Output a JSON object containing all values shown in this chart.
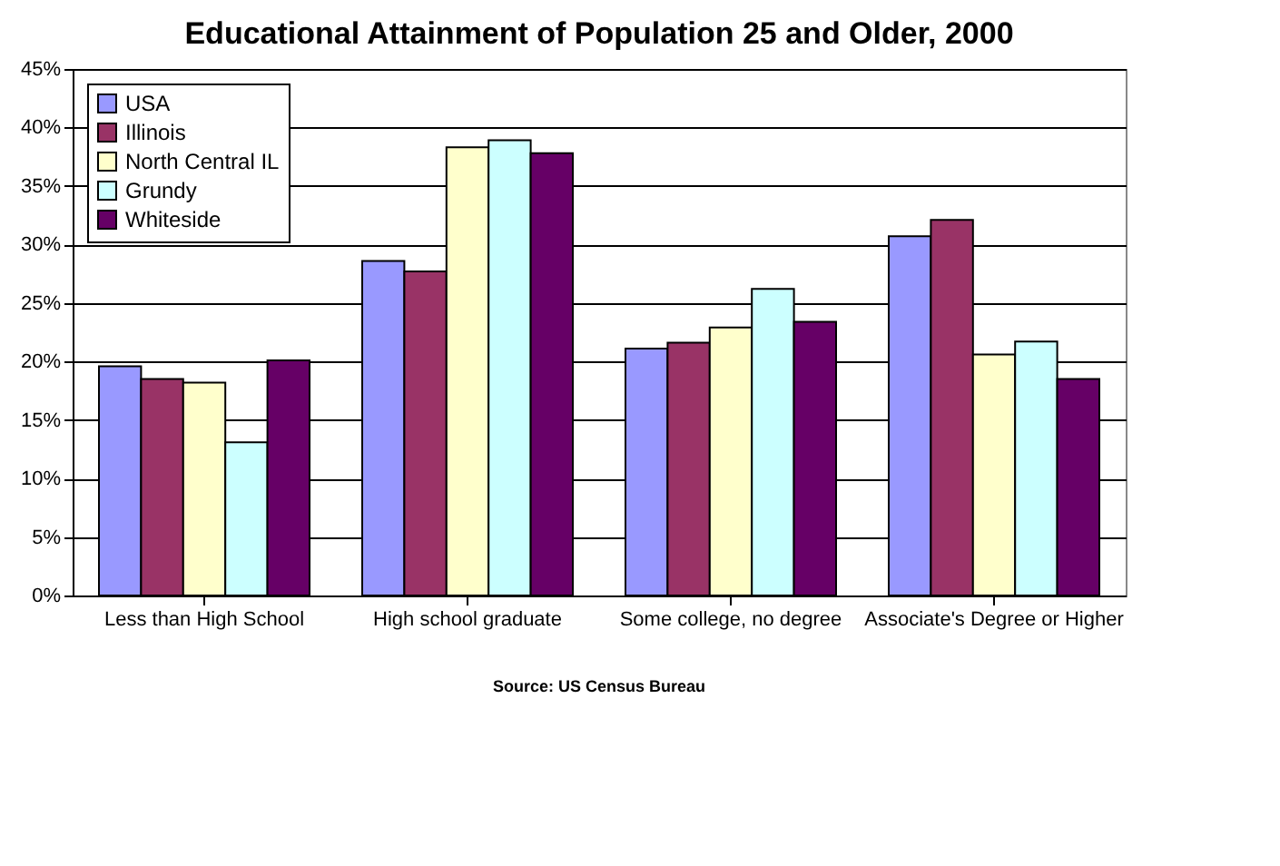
{
  "chart_data": {
    "type": "bar",
    "title": "Educational Attainment of Population 25 and Older, 2000",
    "categories": [
      "Less than High School",
      "High school graduate",
      "Some college, no degree",
      "Associate's Degree or Higher"
    ],
    "series": [
      {
        "name": "USA",
        "color": "#9999ff",
        "values": [
          19.6,
          28.6,
          21.1,
          30.7
        ]
      },
      {
        "name": "Illinois",
        "color": "#993366",
        "values": [
          18.5,
          27.7,
          21.6,
          32.1
        ]
      },
      {
        "name": "North Central IL",
        "color": "#ffffcc",
        "values": [
          18.2,
          38.3,
          22.9,
          20.6
        ]
      },
      {
        "name": "Grundy",
        "color": "#ccffff",
        "values": [
          13.1,
          38.9,
          26.2,
          21.7
        ]
      },
      {
        "name": "Whiteside",
        "color": "#660066",
        "values": [
          20.1,
          37.8,
          23.4,
          18.5
        ]
      }
    ],
    "ylim": [
      0,
      45
    ],
    "yticks": [
      {
        "value": 0,
        "label": "0%"
      },
      {
        "value": 5,
        "label": "5%"
      },
      {
        "value": 10,
        "label": "10%"
      },
      {
        "value": 15,
        "label": "15%"
      },
      {
        "value": 20,
        "label": "20%"
      },
      {
        "value": 25,
        "label": "25%"
      },
      {
        "value": 30,
        "label": "30%"
      },
      {
        "value": 35,
        "label": "35%"
      },
      {
        "value": 40,
        "label": "40%"
      },
      {
        "value": 45,
        "label": "45%"
      }
    ],
    "grid": "y",
    "legend": "top left",
    "annotations": [
      "Source: US Census Bureau"
    ]
  }
}
